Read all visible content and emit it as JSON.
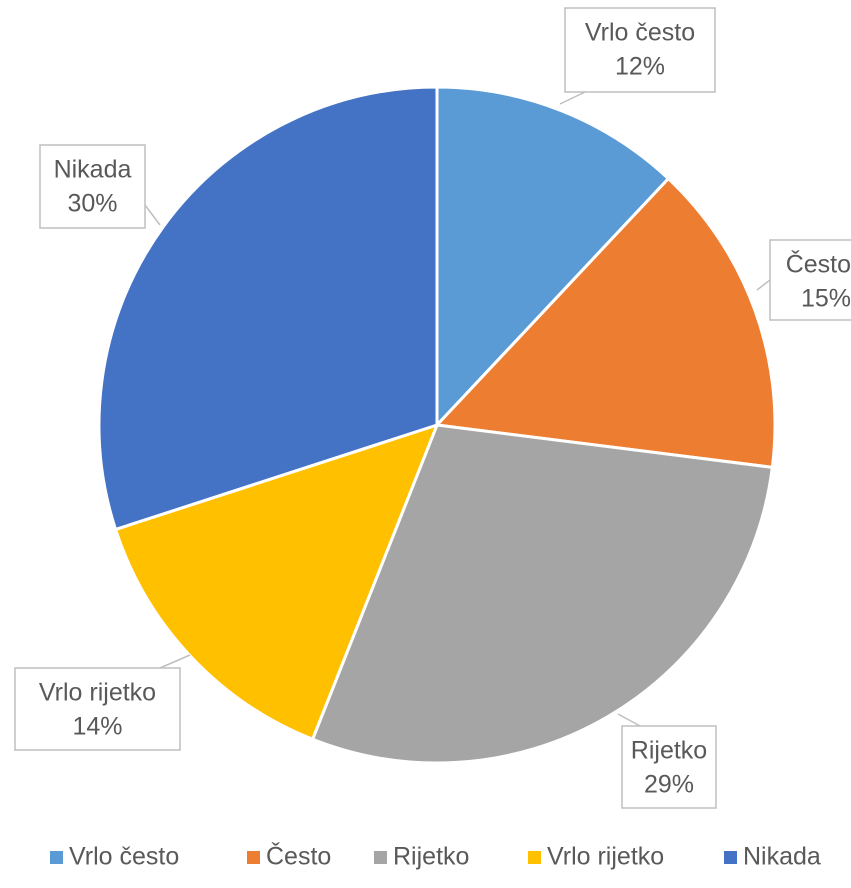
{
  "chart_data": {
    "type": "pie",
    "categories": [
      "Vrlo često",
      "Često",
      "Rijetko",
      "Vrlo rijetko",
      "Nikada"
    ],
    "values": [
      12,
      15,
      29,
      14,
      30
    ],
    "value_labels": [
      "12%",
      "15%",
      "29%",
      "14%",
      "30%"
    ],
    "colors": [
      "#5b9bd5",
      "#ed7d31",
      "#a5a5a5",
      "#ffc000",
      "#4472c4"
    ],
    "legend": "bottom"
  }
}
